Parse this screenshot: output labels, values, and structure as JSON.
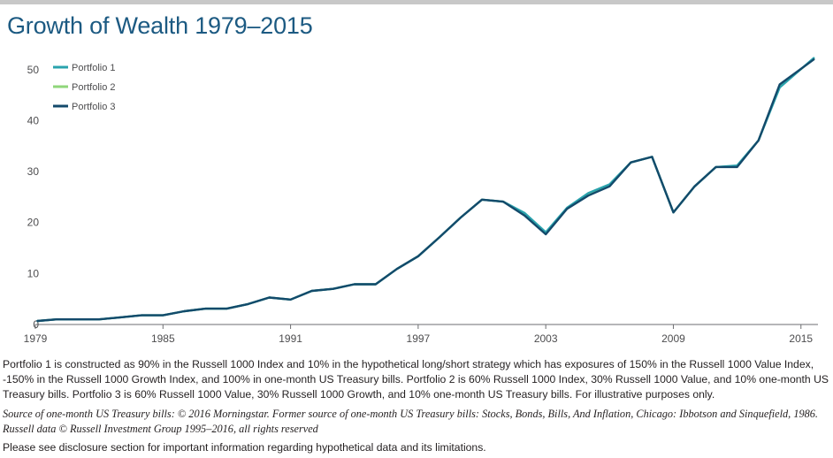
{
  "title": "Growth of Wealth 1979–2015",
  "chart_data": {
    "type": "line",
    "title": "Growth of Wealth 1979–2015",
    "xlabel": "",
    "ylabel": "",
    "xlim": [
      1979,
      2015.8
    ],
    "ylim": [
      0,
      55
    ],
    "x_ticks": [
      "1979",
      "1985",
      "1991",
      "1997",
      "2003",
      "2009",
      "2015"
    ],
    "y_ticks": [
      "0",
      "10",
      "20",
      "30",
      "40",
      "50"
    ],
    "grid": false,
    "legend_position": "top-left",
    "x": [
      1979.1,
      1980,
      1981,
      1982,
      1983,
      1984,
      1985,
      1986,
      1987,
      1988,
      1989,
      1990,
      1991,
      1992,
      1993,
      1994,
      1995,
      1996,
      1997,
      1998,
      1999,
      2000,
      2001,
      2002,
      2003,
      2004,
      2005,
      2006,
      2007,
      2008,
      2009,
      2010,
      2011,
      2012,
      2013,
      2014,
      2015.6
    ],
    "series": [
      {
        "name": "Portfolio 1",
        "color": "#2aa3ad",
        "values": [
          0.7,
          1.0,
          1.0,
          1.0,
          1.4,
          1.8,
          1.8,
          2.6,
          3.1,
          3.1,
          4.0,
          5.3,
          4.9,
          6.6,
          7.0,
          7.9,
          7.9,
          10.9,
          13.4,
          17.1,
          21.0,
          24.5,
          24.1,
          21.9,
          18.1,
          22.9,
          25.8,
          27.5,
          31.8,
          32.9,
          22.0,
          27.1,
          30.9,
          31.2,
          36.1,
          46.5,
          52.3
        ]
      },
      {
        "name": "Portfolio 2",
        "color": "#8fd67a",
        "values": [
          0.7,
          1.0,
          1.0,
          1.0,
          1.4,
          1.8,
          1.8,
          2.6,
          3.1,
          3.1,
          4.0,
          5.3,
          4.9,
          6.6,
          7.0,
          7.9,
          7.9,
          10.9,
          13.4,
          17.1,
          21.0,
          24.5,
          24.1,
          21.7,
          18.0,
          22.8,
          25.6,
          27.4,
          31.8,
          32.9,
          22.0,
          27.1,
          30.9,
          31.1,
          36.1,
          46.8,
          52.1
        ]
      },
      {
        "name": "Portfolio 3",
        "color": "#134a6b",
        "values": [
          0.7,
          1.0,
          1.0,
          1.0,
          1.4,
          1.8,
          1.8,
          2.6,
          3.1,
          3.1,
          4.0,
          5.3,
          4.9,
          6.6,
          7.0,
          7.9,
          7.9,
          10.9,
          13.4,
          17.1,
          21.0,
          24.5,
          24.1,
          21.4,
          17.7,
          22.7,
          25.3,
          27.1,
          31.8,
          32.9,
          22.0,
          27.1,
          30.9,
          30.9,
          36.1,
          47.1,
          52.0
        ]
      }
    ]
  },
  "footnotes": {
    "description": "Portfolio 1 is constructed as 90% in the Russell 1000 Index and 10% in the hypothetical long/short strategy which has exposures of 150% in the Russell 1000 Value Index, -150% in the Russell 1000 Growth Index, and 100% in one-month US Treasury bills. Portfolio 2 is 60% Russell 1000 Index, 30% Russell 1000 Value, and 10% one-month US Treasury bills. Portfolio 3 is 60% Russell 1000 Value, 30% Russell 1000 Growth, and 10% one-month US Treasury bills. For illustrative purposes only.",
    "source": "Source of one-month US Treasury bills: © 2016 Morningstar. Former source of one-month US Treasury bills: Stocks, Bonds, Bills, And Inflation, Chicago: Ibbotson and Sinquefield, 1986. Russell data © Russell Investment Group 1995–2016, all rights reserved",
    "disclosure": "Please see disclosure section for important information regarding hypothetical data and its limitations."
  }
}
